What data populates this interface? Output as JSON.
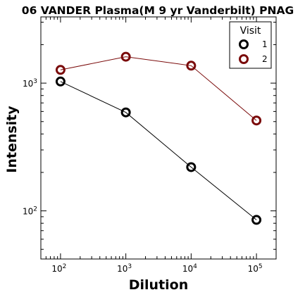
{
  "chart_data": {
    "type": "line",
    "title": "06 VANDER Plasma(M 9 yr Vanderbilt) PNAG",
    "xlabel": "Dilution",
    "ylabel": "Intensity",
    "x_scale": "log",
    "y_scale": "log",
    "xlim": [
      50,
      200000
    ],
    "ylim": [
      42,
      3300
    ],
    "grid": false,
    "x_ticks": [
      {
        "value": 100,
        "base": "10",
        "exp": "2"
      },
      {
        "value": 1000,
        "base": "10",
        "exp": "3"
      },
      {
        "value": 10000,
        "base": "10",
        "exp": "4"
      },
      {
        "value": 100000,
        "base": "10",
        "exp": "5"
      }
    ],
    "y_ticks": [
      {
        "value": 100,
        "base": "10",
        "exp": "2"
      },
      {
        "value": 1000,
        "base": "10",
        "exp": "3"
      }
    ],
    "legend": {
      "title": "Visit",
      "position": "top-right"
    },
    "series": [
      {
        "name": "1",
        "color": "#000000",
        "x": [
          100,
          1000,
          10000,
          100000
        ],
        "y": [
          1030,
          590,
          220,
          85
        ]
      },
      {
        "name": "2",
        "color": "#7a0a0a",
        "x": [
          100,
          1000,
          10000,
          100000
        ],
        "y": [
          1270,
          1610,
          1370,
          510
        ]
      }
    ]
  }
}
